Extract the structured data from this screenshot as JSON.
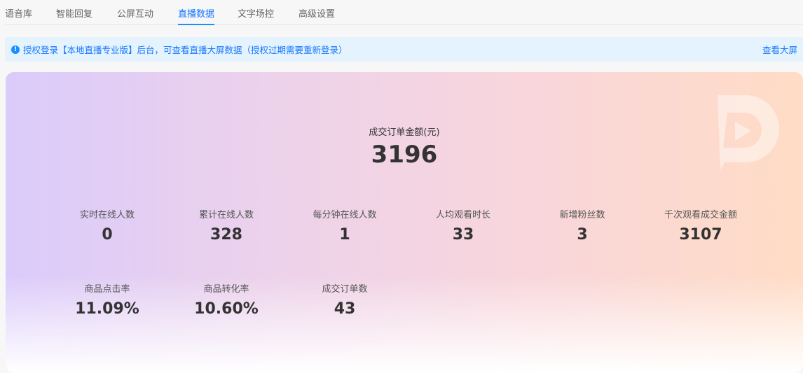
{
  "tabs": [
    {
      "label": "语音库"
    },
    {
      "label": "智能回复"
    },
    {
      "label": "公屏互动"
    },
    {
      "label": "直播数据",
      "active": true
    },
    {
      "label": "文字场控"
    },
    {
      "label": "高级设置"
    }
  ],
  "banner": {
    "icon": "info-icon",
    "text": "授权登录【本地直播专业版】后台，可查看直播大屏数据（授权过期需要重新登录）",
    "link": "查看大屏"
  },
  "summary": {
    "label": "成交订单金额(元)",
    "value": "3196"
  },
  "stats": [
    {
      "label": "实时在线人数",
      "value": "0"
    },
    {
      "label": "累计在线人数",
      "value": "328"
    },
    {
      "label": "每分钟在线人数",
      "value": "1"
    },
    {
      "label": "人均观看时长",
      "value": "33"
    },
    {
      "label": "新增粉丝数",
      "value": "3"
    },
    {
      "label": "千次观看成交金额",
      "value": "3107"
    },
    {
      "label": "商品点击率",
      "value": "11.09%"
    },
    {
      "label": "商品转化率",
      "value": "10.60%"
    },
    {
      "label": "成交订单数",
      "value": "43"
    }
  ],
  "colors": {
    "accent": "#1890ff",
    "banner_bg": "#e4f3fd",
    "gradient_left": "#dbcbfb",
    "gradient_right": "#ffdcc5"
  }
}
